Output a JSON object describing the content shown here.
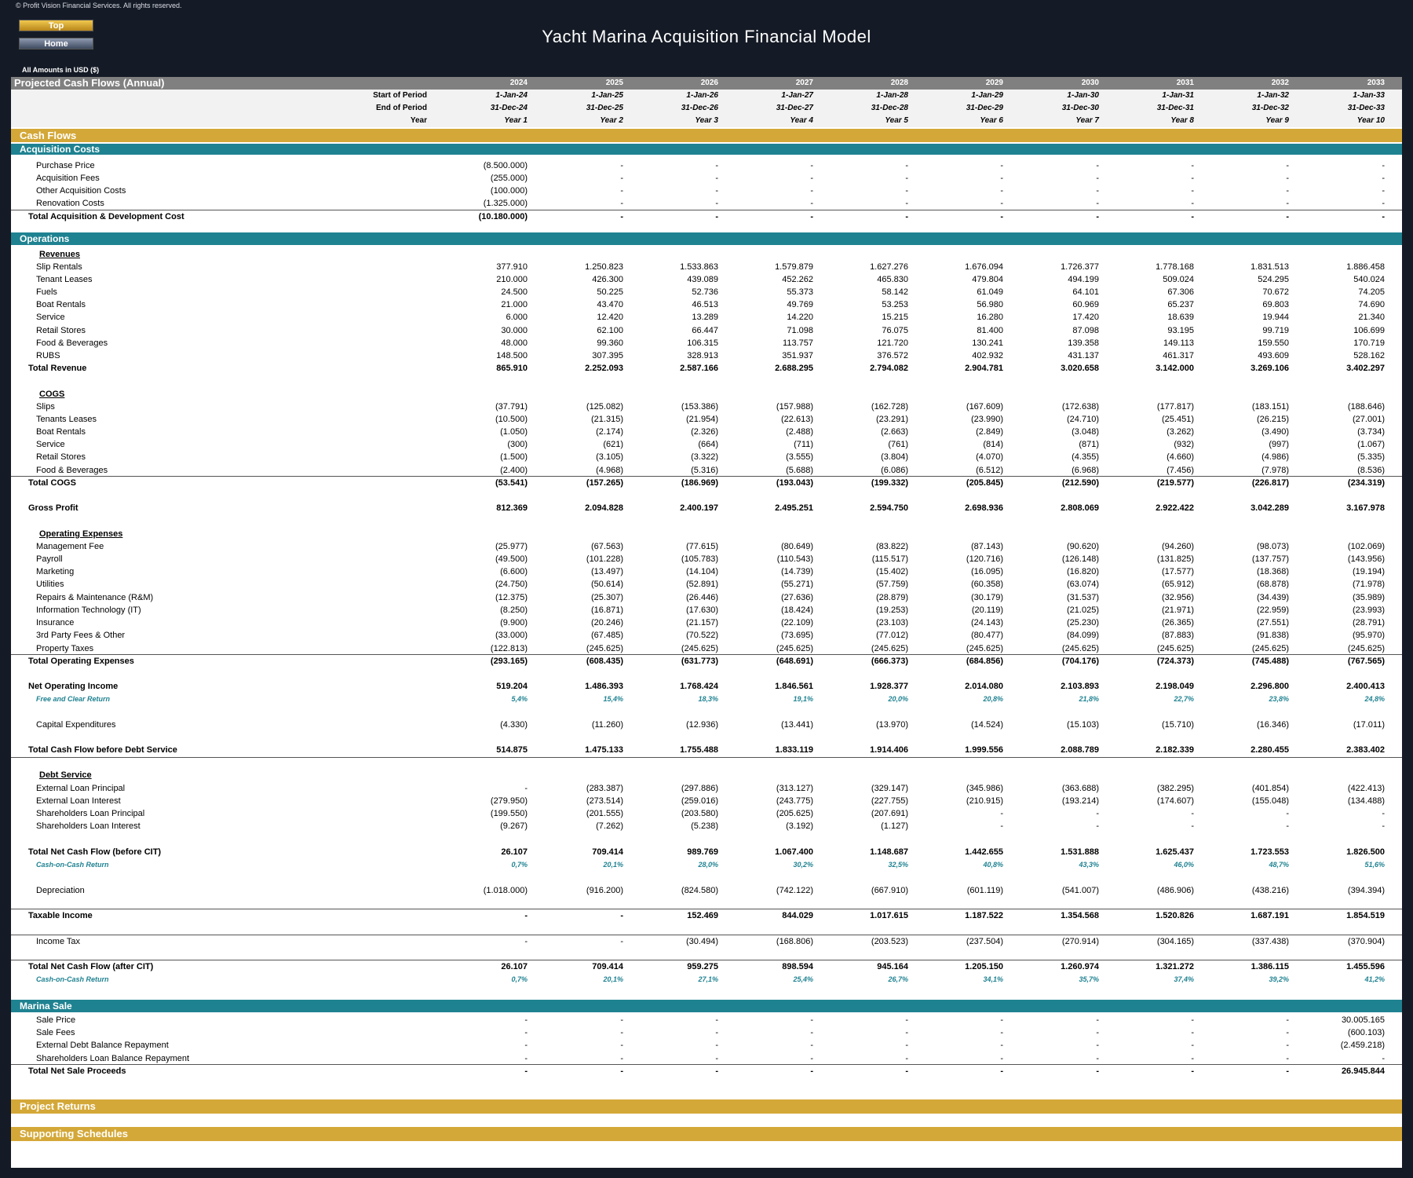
{
  "copyright": "© Profit Vision Financial Services. All rights reserved.",
  "buttons": {
    "top": "Top",
    "home": "Home"
  },
  "app_title": "Yacht Marina Acquisition Financial Model",
  "amounts_note": "All Amounts in  USD ($)",
  "header": {
    "title": "Projected Cash Flows (Annual)",
    "years": [
      "2024",
      "2025",
      "2026",
      "2027",
      "2028",
      "2029",
      "2030",
      "2031",
      "2032",
      "2033"
    ],
    "start_label": "Start of Period",
    "start": [
      "1-Jan-24",
      "1-Jan-25",
      "1-Jan-26",
      "1-Jan-27",
      "1-Jan-28",
      "1-Jan-29",
      "1-Jan-30",
      "1-Jan-31",
      "1-Jan-32",
      "1-Jan-33"
    ],
    "end_label": "End of Period",
    "end": [
      "31-Dec-24",
      "31-Dec-25",
      "31-Dec-26",
      "31-Dec-27",
      "31-Dec-28",
      "31-Dec-29",
      "31-Dec-30",
      "31-Dec-31",
      "31-Dec-32",
      "31-Dec-33"
    ],
    "year_label": "Year",
    "year_idx": [
      "Year 1",
      "Year 2",
      "Year 3",
      "Year 4",
      "Year 5",
      "Year 6",
      "Year 7",
      "Year 8",
      "Year 9",
      "Year 10"
    ]
  },
  "colors": {
    "gold": "#d4a838",
    "teal": "#1f8291",
    "header_gray": "#808080"
  },
  "bands": {
    "cash_flows": "Cash Flows",
    "acquisition_costs": "Acquisition Costs",
    "operations": "Operations",
    "marina_sale": "Marina Sale",
    "project_returns": "Project Returns",
    "supporting_schedules": "Supporting Schedules"
  },
  "rows": [
    {
      "type": "item",
      "label": "Purchase Price",
      "values": [
        "(8.500.000)",
        "-",
        "-",
        "-",
        "-",
        "-",
        "-",
        "-",
        "-",
        "-"
      ]
    },
    {
      "type": "item",
      "label": "Acquisition Fees",
      "values": [
        "(255.000)",
        "-",
        "-",
        "-",
        "-",
        "-",
        "-",
        "-",
        "-",
        "-"
      ]
    },
    {
      "type": "item",
      "label": "Other Acquisition Costs",
      "values": [
        "(100.000)",
        "-",
        "-",
        "-",
        "-",
        "-",
        "-",
        "-",
        "-",
        "-"
      ]
    },
    {
      "type": "item",
      "label": "Renovation Costs",
      "values": [
        "(1.325.000)",
        "-",
        "-",
        "-",
        "-",
        "-",
        "-",
        "-",
        "-",
        "-"
      ]
    },
    {
      "type": "total",
      "label": "Total Acquisition & Development Cost",
      "values": [
        "(10.180.000)",
        "-",
        "-",
        "-",
        "-",
        "-",
        "-",
        "-",
        "-",
        "-"
      ]
    },
    {
      "type": "sub",
      "label": "Revenues"
    },
    {
      "type": "item",
      "label": "Slip Rentals",
      "values": [
        "377.910",
        "1.250.823",
        "1.533.863",
        "1.579.879",
        "1.627.276",
        "1.676.094",
        "1.726.377",
        "1.778.168",
        "1.831.513",
        "1.886.458"
      ]
    },
    {
      "type": "item",
      "label": "Tenant Leases",
      "values": [
        "210.000",
        "426.300",
        "439.089",
        "452.262",
        "465.830",
        "479.804",
        "494.199",
        "509.024",
        "524.295",
        "540.024"
      ]
    },
    {
      "type": "item",
      "label": "Fuels",
      "values": [
        "24.500",
        "50.225",
        "52.736",
        "55.373",
        "58.142",
        "61.049",
        "64.101",
        "67.306",
        "70.672",
        "74.205"
      ]
    },
    {
      "type": "item",
      "label": "Boat Rentals",
      "values": [
        "21.000",
        "43.470",
        "46.513",
        "49.769",
        "53.253",
        "56.980",
        "60.969",
        "65.237",
        "69.803",
        "74.690"
      ]
    },
    {
      "type": "item",
      "label": "Service",
      "values": [
        "6.000",
        "12.420",
        "13.289",
        "14.220",
        "15.215",
        "16.280",
        "17.420",
        "18.639",
        "19.944",
        "21.340"
      ]
    },
    {
      "type": "item",
      "label": "Retail Stores",
      "values": [
        "30.000",
        "62.100",
        "66.447",
        "71.098",
        "76.075",
        "81.400",
        "87.098",
        "93.195",
        "99.719",
        "106.699"
      ]
    },
    {
      "type": "item",
      "label": "Food & Beverages",
      "values": [
        "48.000",
        "99.360",
        "106.315",
        "113.757",
        "121.720",
        "130.241",
        "139.358",
        "149.113",
        "159.550",
        "170.719"
      ]
    },
    {
      "type": "item",
      "label": "RUBS",
      "values": [
        "148.500",
        "307.395",
        "328.913",
        "351.937",
        "376.572",
        "402.932",
        "431.137",
        "461.317",
        "493.609",
        "528.162"
      ]
    },
    {
      "type": "total",
      "label": "Total Revenue",
      "values": [
        "865.910",
        "2.252.093",
        "2.587.166",
        "2.688.295",
        "2.794.082",
        "2.904.781",
        "3.020.658",
        "3.142.000",
        "3.269.106",
        "3.402.297"
      ]
    },
    {
      "type": "sub",
      "label": "COGS"
    },
    {
      "type": "item",
      "label": "Slips",
      "values": [
        "(37.791)",
        "(125.082)",
        "(153.386)",
        "(157.988)",
        "(162.728)",
        "(167.609)",
        "(172.638)",
        "(177.817)",
        "(183.151)",
        "(188.646)"
      ]
    },
    {
      "type": "item",
      "label": "Tenants Leases",
      "values": [
        "(10.500)",
        "(21.315)",
        "(21.954)",
        "(22.613)",
        "(23.291)",
        "(23.990)",
        "(24.710)",
        "(25.451)",
        "(26.215)",
        "(27.001)"
      ]
    },
    {
      "type": "item",
      "label": "Boat Rentals",
      "values": [
        "(1.050)",
        "(2.174)",
        "(2.326)",
        "(2.488)",
        "(2.663)",
        "(2.849)",
        "(3.048)",
        "(3.262)",
        "(3.490)",
        "(3.734)"
      ]
    },
    {
      "type": "item",
      "label": "Service",
      "values": [
        "(300)",
        "(621)",
        "(664)",
        "(711)",
        "(761)",
        "(814)",
        "(871)",
        "(932)",
        "(997)",
        "(1.067)"
      ]
    },
    {
      "type": "item",
      "label": "Retail Stores",
      "values": [
        "(1.500)",
        "(3.105)",
        "(3.322)",
        "(3.555)",
        "(3.804)",
        "(4.070)",
        "(4.355)",
        "(4.660)",
        "(4.986)",
        "(5.335)"
      ]
    },
    {
      "type": "item",
      "label": "Food & Beverages",
      "values": [
        "(2.400)",
        "(4.968)",
        "(5.316)",
        "(5.688)",
        "(6.086)",
        "(6.512)",
        "(6.968)",
        "(7.456)",
        "(7.978)",
        "(8.536)"
      ]
    },
    {
      "type": "total",
      "label": "Total COGS",
      "values": [
        "(53.541)",
        "(157.265)",
        "(186.969)",
        "(193.043)",
        "(199.332)",
        "(205.845)",
        "(212.590)",
        "(219.577)",
        "(226.817)",
        "(234.319)"
      ]
    },
    {
      "type": "total",
      "label": "Gross Profit",
      "values": [
        "812.369",
        "2.094.828",
        "2.400.197",
        "2.495.251",
        "2.594.750",
        "2.698.936",
        "2.808.069",
        "2.922.422",
        "3.042.289",
        "3.167.978"
      ]
    },
    {
      "type": "sub",
      "label": "Operating Expenses"
    },
    {
      "type": "item",
      "label": "Management Fee",
      "values": [
        "(25.977)",
        "(67.563)",
        "(77.615)",
        "(80.649)",
        "(83.822)",
        "(87.143)",
        "(90.620)",
        "(94.260)",
        "(98.073)",
        "(102.069)"
      ]
    },
    {
      "type": "item",
      "label": "Payroll",
      "values": [
        "(49.500)",
        "(101.228)",
        "(105.783)",
        "(110.543)",
        "(115.517)",
        "(120.716)",
        "(126.148)",
        "(131.825)",
        "(137.757)",
        "(143.956)"
      ]
    },
    {
      "type": "item",
      "label": "Marketing",
      "values": [
        "(6.600)",
        "(13.497)",
        "(14.104)",
        "(14.739)",
        "(15.402)",
        "(16.095)",
        "(16.820)",
        "(17.577)",
        "(18.368)",
        "(19.194)"
      ]
    },
    {
      "type": "item",
      "label": "Utilities",
      "values": [
        "(24.750)",
        "(50.614)",
        "(52.891)",
        "(55.271)",
        "(57.759)",
        "(60.358)",
        "(63.074)",
        "(65.912)",
        "(68.878)",
        "(71.978)"
      ]
    },
    {
      "type": "item",
      "label": "Repairs & Maintenance (R&M)",
      "values": [
        "(12.375)",
        "(25.307)",
        "(26.446)",
        "(27.636)",
        "(28.879)",
        "(30.179)",
        "(31.537)",
        "(32.956)",
        "(34.439)",
        "(35.989)"
      ]
    },
    {
      "type": "item",
      "label": "Information Technology (IT)",
      "values": [
        "(8.250)",
        "(16.871)",
        "(17.630)",
        "(18.424)",
        "(19.253)",
        "(20.119)",
        "(21.025)",
        "(21.971)",
        "(22.959)",
        "(23.993)"
      ]
    },
    {
      "type": "item",
      "label": "Insurance",
      "values": [
        "(9.900)",
        "(20.246)",
        "(21.157)",
        "(22.109)",
        "(23.103)",
        "(24.143)",
        "(25.230)",
        "(26.365)",
        "(27.551)",
        "(28.791)"
      ]
    },
    {
      "type": "item",
      "label": "3rd Party Fees & Other",
      "values": [
        "(33.000)",
        "(67.485)",
        "(70.522)",
        "(73.695)",
        "(77.012)",
        "(80.477)",
        "(84.099)",
        "(87.883)",
        "(91.838)",
        "(95.970)"
      ]
    },
    {
      "type": "item",
      "label": "Property Taxes",
      "values": [
        "(122.813)",
        "(245.625)",
        "(245.625)",
        "(245.625)",
        "(245.625)",
        "(245.625)",
        "(245.625)",
        "(245.625)",
        "(245.625)",
        "(245.625)"
      ]
    },
    {
      "type": "total",
      "label": "Total Operating Expenses",
      "values": [
        "(293.165)",
        "(608.435)",
        "(631.773)",
        "(648.691)",
        "(666.373)",
        "(684.856)",
        "(704.176)",
        "(724.373)",
        "(745.488)",
        "(767.565)"
      ]
    },
    {
      "type": "total",
      "label": "Net Operating Income",
      "values": [
        "519.204",
        "1.486.393",
        "1.768.424",
        "1.846.561",
        "1.928.377",
        "2.014.080",
        "2.103.893",
        "2.198.049",
        "2.296.800",
        "2.400.413"
      ]
    },
    {
      "type": "pct",
      "label": "Free and Clear Return",
      "values": [
        "5,4%",
        "15,4%",
        "18,3%",
        "19,1%",
        "20,0%",
        "20,8%",
        "21,8%",
        "22,7%",
        "23,8%",
        "24,8%"
      ]
    },
    {
      "type": "item",
      "label": "Capital Expenditures",
      "values": [
        "(4.330)",
        "(11.260)",
        "(12.936)",
        "(13.441)",
        "(13.970)",
        "(14.524)",
        "(15.103)",
        "(15.710)",
        "(16.346)",
        "(17.011)"
      ]
    },
    {
      "type": "total",
      "label": "Total Cash Flow before Debt Service",
      "values": [
        "514.875",
        "1.475.133",
        "1.755.488",
        "1.833.119",
        "1.914.406",
        "1.999.556",
        "2.088.789",
        "2.182.339",
        "2.280.455",
        "2.383.402"
      ]
    },
    {
      "type": "sub",
      "label": "Debt Service"
    },
    {
      "type": "item",
      "label": "External Loan Principal",
      "values": [
        "-",
        "(283.387)",
        "(297.886)",
        "(313.127)",
        "(329.147)",
        "(345.986)",
        "(363.688)",
        "(382.295)",
        "(401.854)",
        "(422.413)"
      ]
    },
    {
      "type": "item",
      "label": "External Loan Interest",
      "values": [
        "(279.950)",
        "(273.514)",
        "(259.016)",
        "(243.775)",
        "(227.755)",
        "(210.915)",
        "(193.214)",
        "(174.607)",
        "(155.048)",
        "(134.488)"
      ]
    },
    {
      "type": "item",
      "label": "Shareholders Loan Principal",
      "values": [
        "(199.550)",
        "(201.555)",
        "(203.580)",
        "(205.625)",
        "(207.691)",
        "-",
        "-",
        "-",
        "-",
        "-"
      ]
    },
    {
      "type": "item",
      "label": "Shareholders Loan Interest",
      "values": [
        "(9.267)",
        "(7.262)",
        "(5.238)",
        "(3.192)",
        "(1.127)",
        "-",
        "-",
        "-",
        "-",
        "-"
      ]
    },
    {
      "type": "total",
      "label": "Total Net Cash Flow (before CIT)",
      "values": [
        "26.107",
        "709.414",
        "989.769",
        "1.067.400",
        "1.148.687",
        "1.442.655",
        "1.531.888",
        "1.625.437",
        "1.723.553",
        "1.826.500"
      ]
    },
    {
      "type": "pct",
      "label": "Cash-on-Cash Return",
      "values": [
        "0,7%",
        "20,1%",
        "28,0%",
        "30,2%",
        "32,5%",
        "40,8%",
        "43,3%",
        "46,0%",
        "48,7%",
        "51,6%"
      ]
    },
    {
      "type": "item",
      "label": "Depreciation",
      "values": [
        "(1.018.000)",
        "(916.200)",
        "(824.580)",
        "(742.122)",
        "(667.910)",
        "(601.119)",
        "(541.007)",
        "(486.906)",
        "(438.216)",
        "(394.394)"
      ]
    },
    {
      "type": "total",
      "label": "Taxable Income",
      "values": [
        "-",
        "-",
        "152.469",
        "844.029",
        "1.017.615",
        "1.187.522",
        "1.354.568",
        "1.520.826",
        "1.687.191",
        "1.854.519"
      ]
    },
    {
      "type": "item",
      "label": "Income Tax",
      "values": [
        "-",
        "-",
        "(30.494)",
        "(168.806)",
        "(203.523)",
        "(237.504)",
        "(270.914)",
        "(304.165)",
        "(337.438)",
        "(370.904)"
      ]
    },
    {
      "type": "total",
      "label": "Total Net Cash Flow (after CIT)",
      "values": [
        "26.107",
        "709.414",
        "959.275",
        "898.594",
        "945.164",
        "1.205.150",
        "1.260.974",
        "1.321.272",
        "1.386.115",
        "1.455.596"
      ]
    },
    {
      "type": "pct",
      "label": "Cash-on-Cash Return",
      "values": [
        "0,7%",
        "20,1%",
        "27,1%",
        "25,4%",
        "26,7%",
        "34,1%",
        "35,7%",
        "37,4%",
        "39,2%",
        "41,2%"
      ]
    },
    {
      "type": "item",
      "label": "Sale Price",
      "values": [
        "-",
        "-",
        "-",
        "-",
        "-",
        "-",
        "-",
        "-",
        "-",
        "30.005.165"
      ]
    },
    {
      "type": "item",
      "label": "Sale Fees",
      "values": [
        "-",
        "-",
        "-",
        "-",
        "-",
        "-",
        "-",
        "-",
        "-",
        "(600.103)"
      ]
    },
    {
      "type": "item",
      "label": "External Debt Balance Repayment",
      "values": [
        "-",
        "-",
        "-",
        "-",
        "-",
        "-",
        "-",
        "-",
        "-",
        "(2.459.218)"
      ]
    },
    {
      "type": "item",
      "label": "Shareholders Loan Balance Repayment",
      "values": [
        "-",
        "-",
        "-",
        "-",
        "-",
        "-",
        "-",
        "-",
        "-",
        "-"
      ]
    },
    {
      "type": "total",
      "label": "Total Net Sale Proceeds",
      "values": [
        "-",
        "-",
        "-",
        "-",
        "-",
        "-",
        "-",
        "-",
        "-",
        "26.945.844"
      ]
    }
  ]
}
